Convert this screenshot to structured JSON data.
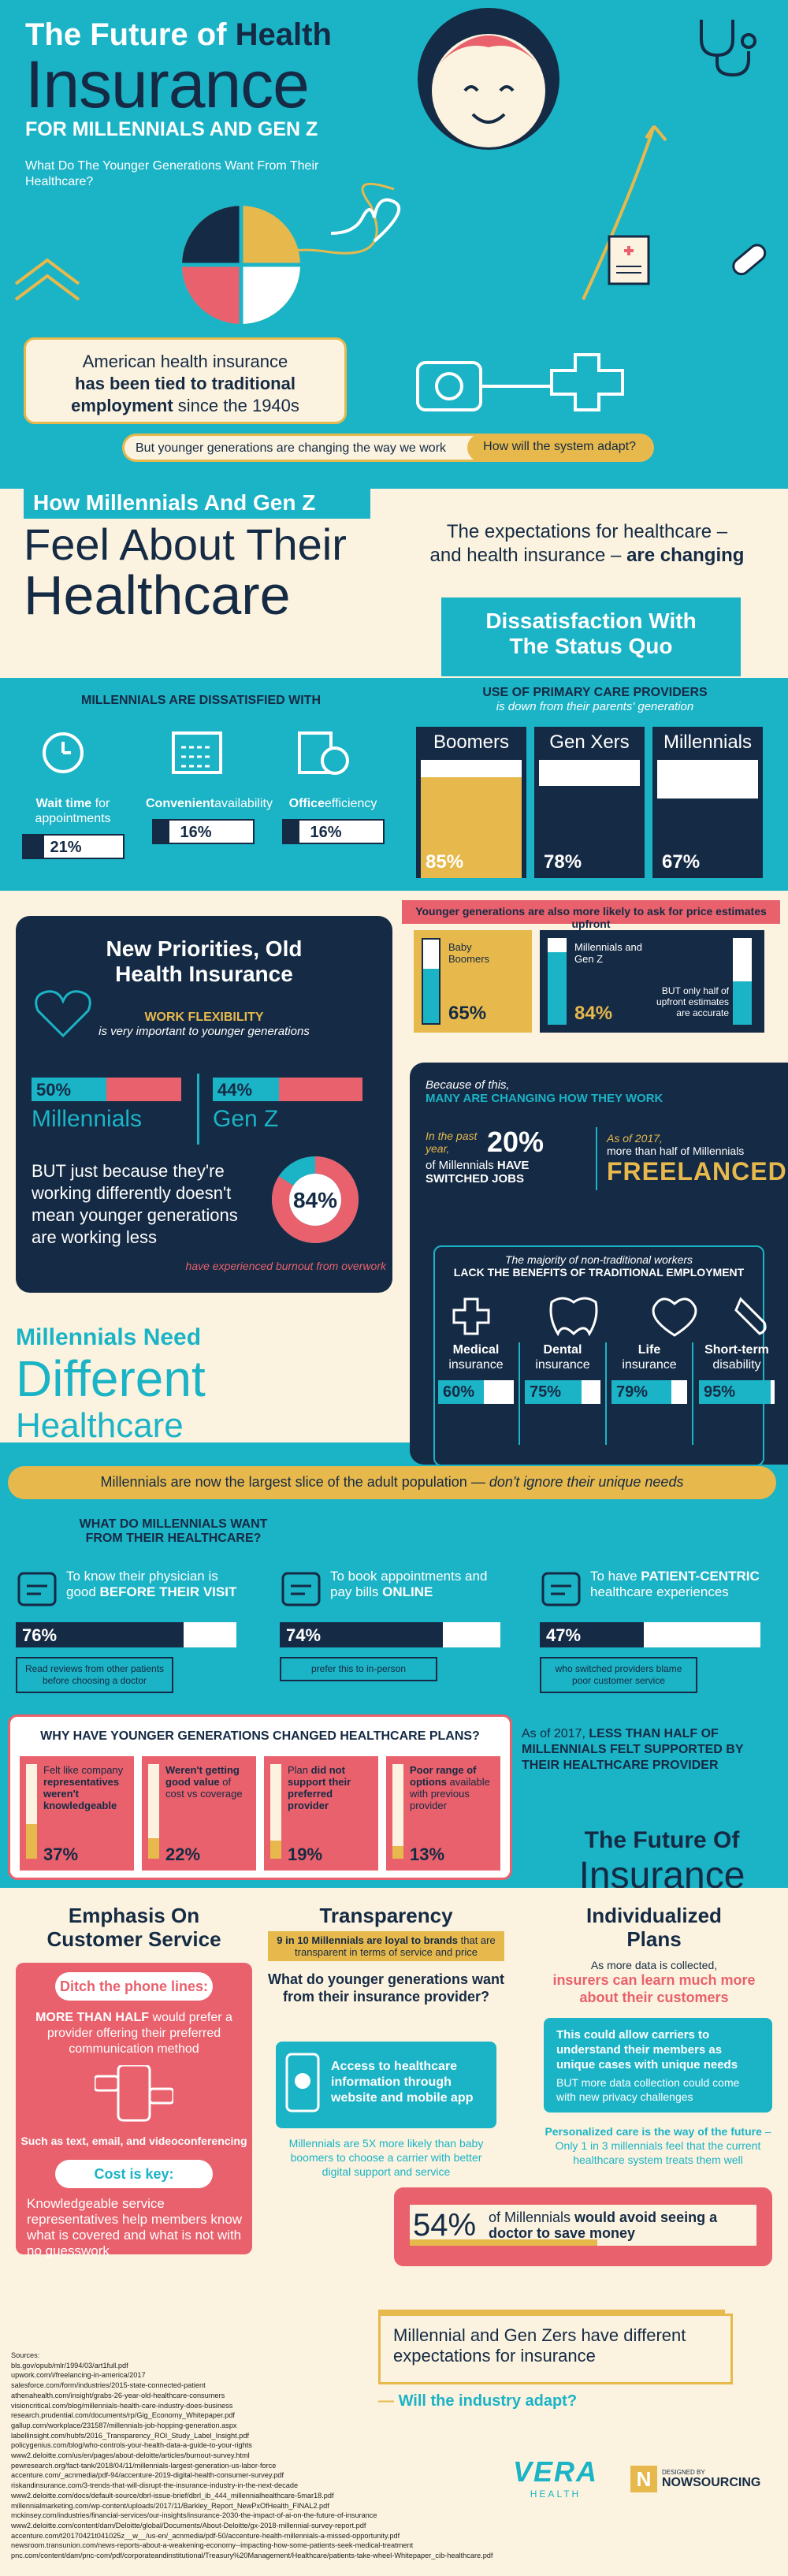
{
  "header": {
    "title_line1": "The Future of",
    "title_health": "Health",
    "title_insurance": "Insurance",
    "title_sub": "FOR MILLENNIALS AND GEN Z",
    "question": "What Do The Younger Generations Want From Their Healthcare?"
  },
  "intro": {
    "text1": "American health insurance",
    "text2": "has been tied to traditional employment",
    "text3": "since the 1940s",
    "pill_left": "But younger generations are changing the way we work",
    "pill_right": "How will the system adapt?"
  },
  "section1": {
    "kicker": "How Millennials And Gen Z",
    "title1": "Feel About Their",
    "title2": "Healthcare",
    "expect1": "The expectations for healthcare –",
    "expect2a": "and health insurance – ",
    "expect2b": "are changing"
  },
  "dissat": {
    "title1": "Dissatisfaction With",
    "title2": "The Status Quo",
    "heading": "MILLENNIALS ARE DISSATISFIED WITH",
    "items": [
      {
        "label_a": "Wait time",
        "label_b": " for appointments",
        "value": "21%",
        "pct": 21
      },
      {
        "label_a": "Convenient",
        "label_b": "availability",
        "value": "16%",
        "pct": 16
      },
      {
        "label_a": "Office",
        "label_b": "efficiency",
        "value": "16%",
        "pct": 16
      }
    ]
  },
  "primary_care": {
    "heading": "USE OF PRIMARY CARE PROVIDERS",
    "sub": "is down from their parents' generation",
    "cols": [
      {
        "name": "Boomers",
        "value": "85%",
        "pct": 85
      },
      {
        "name": "Gen Xers",
        "value": "78%",
        "pct": 78
      },
      {
        "name": "Millennials",
        "value": "67%",
        "pct": 67
      }
    ],
    "price_note": "Younger generations are also more likely to ask for price estimates upfront",
    "boomers_label": "Baby Boomers",
    "boomers_value": "65%",
    "boomers_pct": 65,
    "millennials_label": "Millennials and Gen Z",
    "millennials_value": "84%",
    "millennials_pct": 84,
    "accurate_note": "BUT only half of upfront estimates are accurate"
  },
  "priorities": {
    "title1": "New Priorities, Old",
    "title2": "Health Insurance",
    "flex_title": "WORK FLEXIBILITY",
    "flex_sub": "is very important to younger generations",
    "millennials_value": "50%",
    "millennials_pct": 50,
    "millennials_label": "Millennials",
    "genz_value": "44%",
    "genz_pct": 44,
    "genz_label": "Gen Z",
    "but_text": "BUT just because they're working differently doesn't mean younger generations are working less",
    "burnout_value": "84%",
    "burnout_pct": 84,
    "burnout_label": "have experienced burnout from overwork"
  },
  "work": {
    "because": "Because of this,",
    "changing": "MANY ARE CHANGING HOW THEY WORK",
    "past_year": "In the past year,",
    "pct20": "20%",
    "switched_a": "of Millennials ",
    "switched_b": "HAVE SWITCHED JOBS",
    "as_of": "As of 2017,",
    "more_half": "more than half of Millennials",
    "freelanced": "FREELANCED",
    "majority": "The majority of non-traditional workers",
    "lack": "LACK THE BENEFITS OF TRADITIONAL EMPLOYMENT",
    "benefits": [
      {
        "name_a": "Medical",
        "name_b": "insurance",
        "value": "60%",
        "pct": 60
      },
      {
        "name_a": "Dental",
        "name_b": "insurance",
        "value": "75%",
        "pct": 75
      },
      {
        "name_a": "Life",
        "name_b": "insurance",
        "value": "79%",
        "pct": 79
      },
      {
        "name_a": "Short-term",
        "name_b": "disability",
        "value": "95%",
        "pct": 95
      }
    ]
  },
  "different": {
    "line1": "Millennials Need",
    "line2": "Different",
    "line3": "Healthcare",
    "banner_a": "Millennials are now the largest slice of the adult population — ",
    "banner_b": "don't ignore their unique needs"
  },
  "wants": {
    "heading1": "WHAT DO MILLENNIALS WANT",
    "heading2": "FROM THEIR HEALTHCARE?",
    "items": [
      {
        "text_a": "To know their physician is good ",
        "text_b": "BEFORE THEIR VISIT",
        "value": "76%",
        "pct": 76,
        "note": "Read reviews from other patients before choosing a doctor"
      },
      {
        "text_a": "To book appointments and pay bills ",
        "text_b": "ONLINE",
        "value": "74%",
        "pct": 74,
        "note": "prefer this to in-person"
      },
      {
        "text_a": "To have ",
        "text_b": "PATIENT-CENTRIC",
        "text_c": " healthcare experiences",
        "value": "47%",
        "pct": 47,
        "note": "who switched providers blame poor customer service"
      }
    ]
  },
  "why": {
    "heading": "WHY HAVE YOUNGER GENERATIONS CHANGED HEALTHCARE PLANS?",
    "items": [
      {
        "text_a": "Felt like company ",
        "text_b": "representatives weren't knowledgeable",
        "value": "37%",
        "pct": 37
      },
      {
        "text_a": "",
        "text_b": "Weren't getting good value",
        "text_c": " of cost vs coverage",
        "value": "22%",
        "pct": 22
      },
      {
        "text_a": "Plan ",
        "text_b": "did not support their preferred provider",
        "value": "19%",
        "pct": 19
      },
      {
        "text_a": "",
        "text_b": "Poor range of options",
        "text_c": " available with previous provider",
        "value": "13%",
        "pct": 13
      }
    ],
    "side_a": "As of 2017, ",
    "side_b": "LESS THAN HALF OF MILLENNIALS FELT SUPPORTED BY THEIR HEALTHCARE PROVIDER"
  },
  "future": {
    "title1": "The Future Of",
    "title2": "Insurance",
    "cs_title1": "Emphasis On",
    "cs_title2": "Customer Service",
    "ditch": "Ditch the phone lines:",
    "more_half_a": "MORE THAN HALF",
    "more_half_b": " would prefer a provider offering their preferred communication method",
    "such_as": "Such as text, email, and videoconferencing",
    "cost_key": "Cost is key:",
    "cost_text": "Knowledgeable service representatives help members know what is covered and what is not with no guesswork",
    "tr_title": "Transparency",
    "tr_loyal_a": "9 in 10 Millennials are loyal to brands",
    "tr_loyal_b": " that are transparent in terms of service and price",
    "tr_question": "What do younger generations want from their insurance provider?",
    "tr_access": "Access to healthcare information through website and mobile app",
    "tr_note": "Millennials are 5X more likely than baby boomers to choose a carrier with better digital support and service",
    "ind_title1": "Individualized",
    "ind_title2": "Plans",
    "ind_as_more": "As more data is collected,",
    "ind_insurers": "insurers can learn much more about their customers",
    "ind_box": "This could allow carriers to understand their members as unique cases with unique needs",
    "ind_but": "BUT more data collection could come with new privacy challenges",
    "ind_personal": "Personalized care is the way of the future",
    "ind_only": " – Only 1 in 3 millennials feel that the current healthcare system treats them well",
    "pct54": "54%",
    "avoid_a": "of Millennials ",
    "avoid_b": "would avoid seeing a doctor to save money"
  },
  "closing": {
    "line1": "Millennial and Gen Zers have different expectations for insurance",
    "line2": "Will the industry adapt?"
  },
  "sources": {
    "label": "Sources:",
    "lines": [
      "bls.gov/opub/mlr/1994/03/art1full.pdf",
      "upwork.com/i/freelancing-in-america/2017",
      "salesforce.com/form/industries/2015-state-connected-patient",
      "athenahealth.com/insight/grabs-26-year-old-healthcare-consumers",
      "visioncritical.com/blog/millennials-health-care-industry-does-business",
      "research.prudential.com/documents/rp/Gig_Economy_Whitepaper.pdf",
      "gallup.com/workplace/231587/millennials-job-hopping-generation.aspx",
      "labellinsight.com/hubfs/2016_Transparency_ROI_Study_Label_Insight.pdf",
      "policygenius.com/blog/who-controls-your-health-data-a-guide-to-your-rights",
      "www2.deloitte.com/us/en/pages/about-deloitte/articles/burnout-survey.html",
      "pewresearch.org/fact-tank/2018/04/11/millennials-largest-generation-us-labor-force",
      "accenture.com/_acnmedia/pdf-94/accenture-2019-digital-health-consumer-survey.pdf",
      "riskandinsurance.com/3-trends-that-will-disrupt-the-insurance-industry-in-the-next-decade",
      "www2.deloitte.com/docs/default-source/dbrl-issue-brief/dbrl_ib_444_millennialhealthcare-5mar18.pdf",
      "millennialmarketing.com/wp-content/uploads/2017/11/Barkley_Report_NewPxOfHealth_FINAL2.pdf",
      "mckinsey.com/industries/financial-services/our-insights/insurance-2030-the-impact-of-ai-on-the-future-of-insurance",
      "www2.deloitte.com/content/dam/Deloitte/global/Documents/About-Deloitte/gx-2018-millennial-survey-report.pdf",
      "accenture.com/t20170421t041025z__w__/us-en/_acnmedia/pdf-50/accenture-health-millennials-a-missed-opportunity.pdf",
      "newsroom.transunion.com/news-reports-about-a-weakening-economy--impacting-how-some-patients-seek-medical-treatment",
      "pnc.com/content/dam/pnc-com/pdf/corporateandinstitutional/Treasury%20Management/Healthcare/patients-take-wheel-Whitepaper_cib-healthcare.pdf"
    ]
  },
  "logos": {
    "vera": "VERA",
    "health": "HEALTH",
    "designed_by": "DESIGNED BY",
    "nowsourcing": "NOWSOURCING"
  },
  "colors": {
    "teal": "#1bb3c6",
    "navy": "#152a44",
    "yellow": "#e7b94d",
    "coral": "#e8616c",
    "cream": "#fbf3df"
  }
}
